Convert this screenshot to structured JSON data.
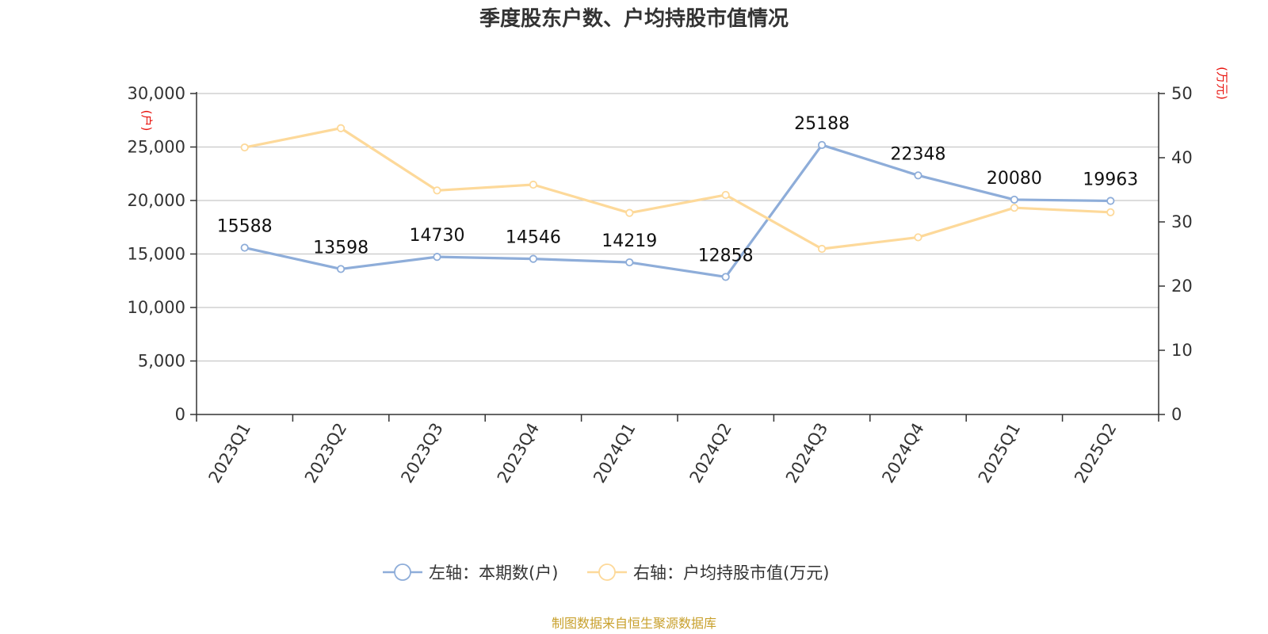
{
  "chart_data": {
    "type": "line",
    "title": "季度股东户数、户均持股市值情况",
    "categories": [
      "2023Q1",
      "2023Q2",
      "2023Q3",
      "2023Q4",
      "2024Q1",
      "2024Q2",
      "2024Q3",
      "2024Q4",
      "2025Q1",
      "2025Q2"
    ],
    "series": [
      {
        "name": "左轴：本期数(户)",
        "axis": "left",
        "color": "#8eadd9",
        "values": [
          15588,
          13598,
          14730,
          14546,
          14219,
          12858,
          25188,
          22348,
          20080,
          19963
        ],
        "labels": [
          "15588",
          "13598",
          "14730",
          "14546",
          "14219",
          "12858",
          "25188",
          "22348",
          "20080",
          "19963"
        ]
      },
      {
        "name": "右轴：户均持股市值(万元)",
        "axis": "right",
        "color": "#fdd99a",
        "values": [
          41.6,
          44.6,
          34.9,
          35.8,
          31.4,
          34.2,
          25.8,
          27.6,
          32.2,
          31.5
        ]
      }
    ],
    "left_axis": {
      "unit": "(户)",
      "ylim": [
        0,
        30000
      ],
      "ticks": [
        0,
        5000,
        10000,
        15000,
        20000,
        25000,
        30000
      ],
      "tick_labels": [
        "0",
        "5,000",
        "10,000",
        "15,000",
        "20,000",
        "25,000",
        "30,000"
      ]
    },
    "right_axis": {
      "unit": "(万元)",
      "ylim": [
        0,
        50
      ],
      "ticks": [
        0,
        10,
        20,
        30,
        40,
        50
      ],
      "tick_labels": [
        "0",
        "10",
        "20",
        "30",
        "40",
        "50"
      ]
    },
    "grid": true,
    "legend_position": "bottom-center",
    "source": "制图数据来自恒生聚源数据库"
  }
}
